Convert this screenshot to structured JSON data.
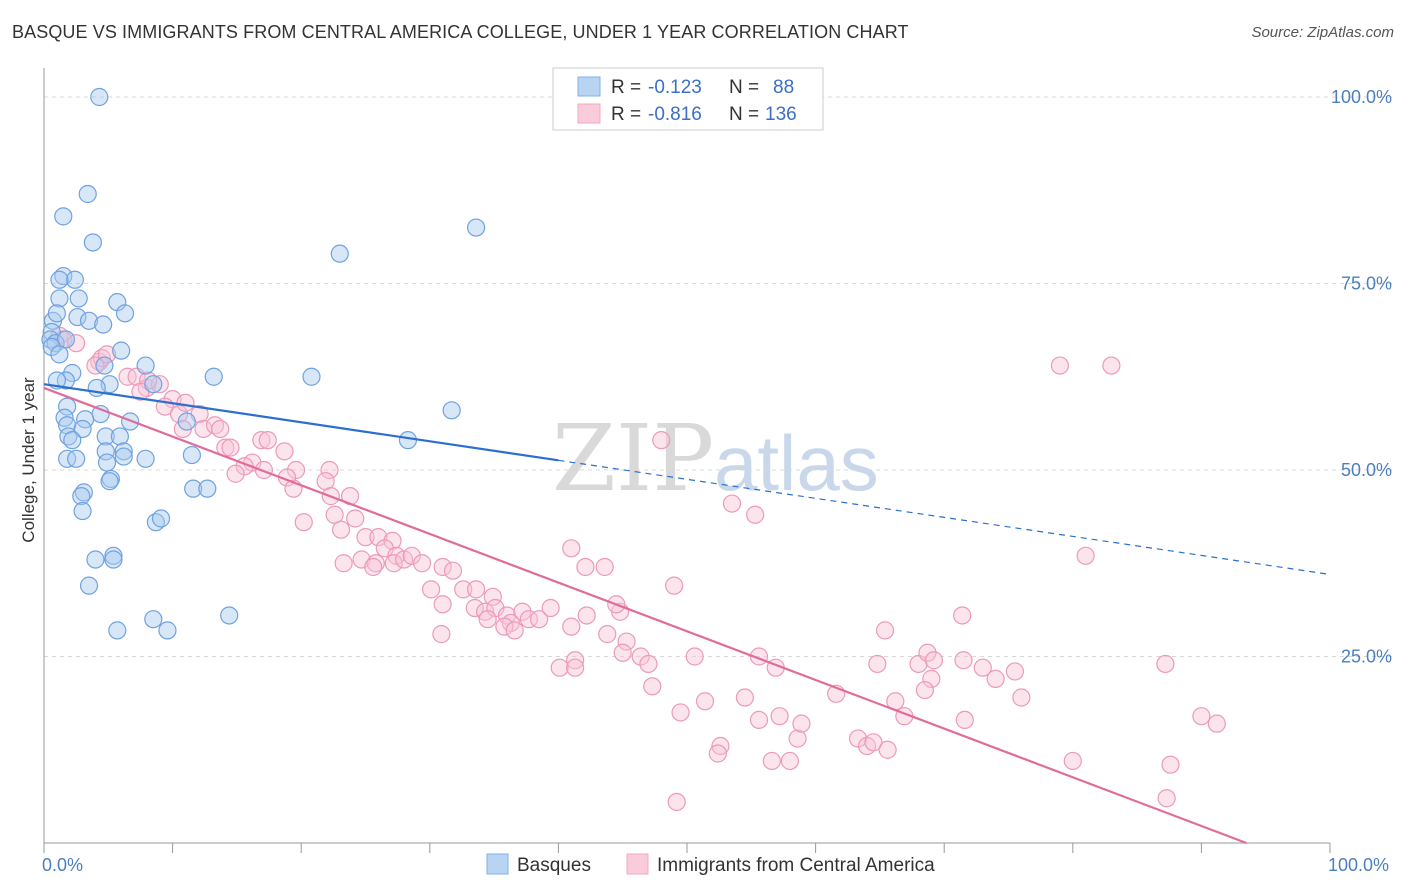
{
  "header": {
    "title": "BASQUE VS IMMIGRANTS FROM CENTRAL AMERICA COLLEGE, UNDER 1 YEAR CORRELATION CHART",
    "source": "Source: ZipAtlas.com"
  },
  "watermark": {
    "zip": "ZIP",
    "atlas": "atlas"
  },
  "colors": {
    "blue": "#7fb0e8",
    "blue_line": "#2c6fcf",
    "pink": "#f2a7c0",
    "pink_line": "#e06c99"
  },
  "legend_top": {
    "rows": [
      {
        "r_label": "R =",
        "r_value": "-0.123",
        "n_label": "N =",
        "n_value": "88"
      },
      {
        "r_label": "R =",
        "r_value": "-0.816",
        "n_label": "N =",
        "n_value": "136"
      }
    ]
  },
  "legend_bottom": {
    "basques": "Basques",
    "immigrants": "Immigrants from Central America"
  },
  "chart_data": {
    "type": "scatter",
    "title": "BASQUE VS IMMIGRANTS FROM CENTRAL AMERICA COLLEGE, UNDER 1 YEAR CORRELATION CHART",
    "xlabel": "",
    "ylabel": "College, Under 1 year",
    "xlim": [
      0,
      100
    ],
    "ylim": [
      0,
      102
    ],
    "x_tick_labels": [
      "0.0%",
      "100.0%"
    ],
    "y_ticks": [
      25,
      50,
      75,
      100
    ],
    "y_tick_labels": [
      "25.0%",
      "50.0%",
      "75.0%",
      "100.0%"
    ],
    "grid": "horizontal dashed",
    "series": [
      {
        "name": "Basques",
        "color": "#7fb0e8",
        "trend": {
          "x0": 0,
          "y0": 61.5,
          "x1": 40,
          "y1": 51.3,
          "dashed_to_x": 100,
          "dashed_to_y": 36
        },
        "points": [
          [
            4.3,
            100
          ],
          [
            3.4,
            87
          ],
          [
            1.5,
            84
          ],
          [
            3.8,
            80.5
          ],
          [
            23,
            79
          ],
          [
            33.6,
            82.5
          ],
          [
            1.5,
            76
          ],
          [
            2.4,
            75.5
          ],
          [
            1.2,
            75.5
          ],
          [
            1.2,
            73
          ],
          [
            2.7,
            73
          ],
          [
            5.7,
            72.5
          ],
          [
            0.7,
            70
          ],
          [
            2.6,
            70.5
          ],
          [
            1.0,
            71
          ],
          [
            3.5,
            70
          ],
          [
            6.3,
            71
          ],
          [
            4.6,
            69.5
          ],
          [
            0.6,
            68.5
          ],
          [
            0.5,
            67.5
          ],
          [
            0.9,
            67
          ],
          [
            1.7,
            67.5
          ],
          [
            0.6,
            66.5
          ],
          [
            1.2,
            65.5
          ],
          [
            6.0,
            66
          ],
          [
            4.7,
            64
          ],
          [
            7.9,
            64
          ],
          [
            2.2,
            63
          ],
          [
            1.7,
            62
          ],
          [
            1.0,
            62
          ],
          [
            13.2,
            62.5
          ],
          [
            20.8,
            62.5
          ],
          [
            8.5,
            61.5
          ],
          [
            5.1,
            61.5
          ],
          [
            4.1,
            61
          ],
          [
            1.8,
            58.5
          ],
          [
            4.4,
            57.5
          ],
          [
            1.6,
            57
          ],
          [
            3.2,
            56.8
          ],
          [
            31.7,
            58
          ],
          [
            1.8,
            56
          ],
          [
            3.0,
            55.5
          ],
          [
            6.7,
            56.5
          ],
          [
            1.9,
            54.5
          ],
          [
            2.2,
            54
          ],
          [
            4.8,
            54.5
          ],
          [
            5.9,
            54.5
          ],
          [
            11.1,
            56.5
          ],
          [
            28.3,
            54
          ],
          [
            4.8,
            52.5
          ],
          [
            6.2,
            52.5
          ],
          [
            6.2,
            51.8
          ],
          [
            1.8,
            51.5
          ],
          [
            2.5,
            51.5
          ],
          [
            4.9,
            51
          ],
          [
            7.9,
            51.5
          ],
          [
            11.5,
            52
          ],
          [
            5.2,
            48.8
          ],
          [
            5.1,
            48.5
          ],
          [
            11.6,
            47.5
          ],
          [
            12.7,
            47.5
          ],
          [
            3.1,
            47
          ],
          [
            2.9,
            46.5
          ],
          [
            3.0,
            44.5
          ],
          [
            8.7,
            43
          ],
          [
            9.1,
            43.5
          ],
          [
            4.0,
            38
          ],
          [
            5.4,
            38.5
          ],
          [
            5.4,
            38
          ],
          [
            3.5,
            34.5
          ],
          [
            14.4,
            30.5
          ],
          [
            8.5,
            30
          ],
          [
            5.7,
            28.5
          ],
          [
            9.6,
            28.5
          ]
        ]
      },
      {
        "name": "Immigrants from Central America",
        "color": "#f2a7c0",
        "trend": {
          "x0": 0,
          "y0": 61,
          "x1": 93.5,
          "y1": 0
        },
        "points": [
          [
            1.2,
            68
          ],
          [
            1.5,
            67.5
          ],
          [
            2.5,
            67
          ],
          [
            4.3,
            64.5
          ],
          [
            4.5,
            65
          ],
          [
            4.9,
            65.5
          ],
          [
            4.0,
            64
          ],
          [
            6.5,
            62.5
          ],
          [
            7.2,
            62.5
          ],
          [
            8.0,
            61
          ],
          [
            9.0,
            61.5
          ],
          [
            8.1,
            62
          ],
          [
            7.5,
            60.5
          ],
          [
            10.0,
            59.5
          ],
          [
            9.4,
            58.5
          ],
          [
            10.5,
            57.5
          ],
          [
            11.0,
            59
          ],
          [
            12.1,
            57.5
          ],
          [
            12.4,
            55.5
          ],
          [
            13.3,
            56
          ],
          [
            13.7,
            55.5
          ],
          [
            10.8,
            55.5
          ],
          [
            14.1,
            53
          ],
          [
            14.5,
            53
          ],
          [
            16.9,
            54
          ],
          [
            17.4,
            54
          ],
          [
            16.2,
            51
          ],
          [
            15.6,
            50.5
          ],
          [
            17.1,
            50
          ],
          [
            18.7,
            52.5
          ],
          [
            14.9,
            49.5
          ],
          [
            19.6,
            50
          ],
          [
            18.9,
            49
          ],
          [
            22.2,
            50
          ],
          [
            21.9,
            48.5
          ],
          [
            19.4,
            47.5
          ],
          [
            22.3,
            46.5
          ],
          [
            23.8,
            46.5
          ],
          [
            20.2,
            43
          ],
          [
            22.6,
            44
          ],
          [
            24.2,
            43.5
          ],
          [
            23.1,
            42
          ],
          [
            25.0,
            41
          ],
          [
            26.0,
            41
          ],
          [
            27.1,
            40.5
          ],
          [
            26.5,
            39.5
          ],
          [
            24.7,
            38
          ],
          [
            25.8,
            37.5
          ],
          [
            27.4,
            38.5
          ],
          [
            27.2,
            37.5
          ],
          [
            28.0,
            38
          ],
          [
            28.6,
            38.5
          ],
          [
            29.4,
            37.5
          ],
          [
            23.3,
            37.5
          ],
          [
            25.6,
            37
          ],
          [
            31.0,
            37
          ],
          [
            31.8,
            36.5
          ],
          [
            30.1,
            34
          ],
          [
            32.6,
            34
          ],
          [
            33.6,
            34
          ],
          [
            34.9,
            33
          ],
          [
            31.0,
            32
          ],
          [
            33.5,
            31.5
          ],
          [
            34.3,
            31
          ],
          [
            35.1,
            31.5
          ],
          [
            36.0,
            30.5
          ],
          [
            37.2,
            31
          ],
          [
            36.3,
            29.5
          ],
          [
            37.7,
            30
          ],
          [
            35.8,
            29
          ],
          [
            38.5,
            30
          ],
          [
            39.4,
            31.5
          ],
          [
            30.9,
            28
          ],
          [
            34.5,
            30
          ],
          [
            36.6,
            28.5
          ],
          [
            41.0,
            29
          ],
          [
            42.2,
            30.5
          ],
          [
            44.8,
            31
          ],
          [
            43.8,
            28
          ],
          [
            44.5,
            32
          ],
          [
            42.1,
            37
          ],
          [
            41.0,
            39.5
          ],
          [
            43.6,
            37
          ],
          [
            45.3,
            27
          ],
          [
            45.0,
            25.5
          ],
          [
            46.4,
            25
          ],
          [
            47.0,
            24
          ],
          [
            41.3,
            24.5
          ],
          [
            40.1,
            23.5
          ],
          [
            41.3,
            23.5
          ],
          [
            47.3,
            21
          ],
          [
            49.5,
            17.5
          ],
          [
            50.6,
            25
          ],
          [
            51.4,
            19
          ],
          [
            49.0,
            34.5
          ],
          [
            48.0,
            54
          ],
          [
            53.5,
            45.5
          ],
          [
            55.3,
            44
          ],
          [
            55.6,
            25
          ],
          [
            57.2,
            17
          ],
          [
            58.6,
            14
          ],
          [
            58.0,
            11
          ],
          [
            56.6,
            11
          ],
          [
            54.5,
            19.5
          ],
          [
            52.6,
            13
          ],
          [
            52.4,
            12
          ],
          [
            55.6,
            16.5
          ],
          [
            58.9,
            16
          ],
          [
            56.9,
            23.5
          ],
          [
            61.6,
            20
          ],
          [
            63.3,
            14
          ],
          [
            64.0,
            13
          ],
          [
            64.5,
            13.5
          ],
          [
            65.6,
            12.5
          ],
          [
            66.9,
            17
          ],
          [
            64.8,
            24
          ],
          [
            66.2,
            19
          ],
          [
            65.4,
            28.5
          ],
          [
            69.0,
            22
          ],
          [
            68.0,
            24
          ],
          [
            68.7,
            25.5
          ],
          [
            68.5,
            20.5
          ],
          [
            69.2,
            24.5
          ],
          [
            71.5,
            24.5
          ],
          [
            71.6,
            16.5
          ],
          [
            73.0,
            23.5
          ],
          [
            74.0,
            22
          ],
          [
            76.0,
            19.5
          ],
          [
            71.4,
            30.5
          ],
          [
            75.5,
            23
          ],
          [
            79.0,
            64
          ],
          [
            83.0,
            64
          ],
          [
            81.0,
            38.5
          ],
          [
            87.2,
            24
          ],
          [
            87.6,
            10.5
          ],
          [
            87.3,
            6
          ],
          [
            90.0,
            17
          ],
          [
            91.2,
            16
          ],
          [
            49.2,
            5.5
          ],
          [
            80.0,
            11
          ]
        ]
      }
    ]
  }
}
